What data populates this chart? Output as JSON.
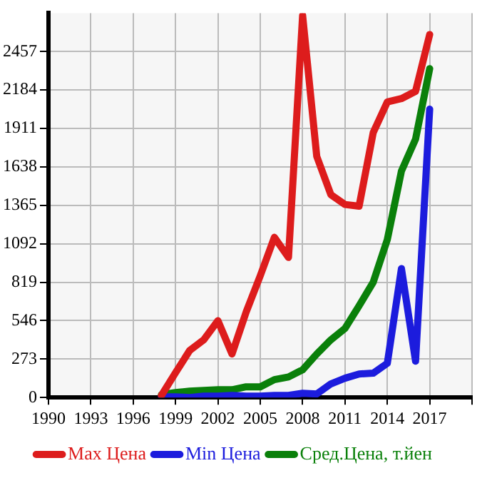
{
  "chart_data": {
    "type": "line",
    "x": [
      1998,
      1999,
      2000,
      2001,
      2002,
      2003,
      2004,
      2005,
      2006,
      2007,
      2008,
      2009,
      2010,
      2011,
      2012,
      2013,
      2014,
      2015,
      2016,
      2017
    ],
    "series": [
      {
        "name": "Max Цена",
        "color": "#dd1c1c",
        "values": [
          15,
          176,
          334,
          410,
          546,
          309,
          607,
          865,
          1138,
          995,
          2714,
          1713,
          1441,
          1371,
          1359,
          1881,
          2099,
          2123,
          2175,
          2578
        ]
      },
      {
        "name": "Min Цена",
        "color": "#1c1cdd",
        "values": [
          5,
          5,
          0,
          10,
          10,
          15,
          10,
          10,
          15,
          15,
          30,
          25,
          97,
          137,
          167,
          173,
          243,
          916,
          258,
          2048
        ]
      },
      {
        "name": "Сред.Цена, т.йен",
        "color": "#0a800a",
        "values": [
          20,
          35,
          45,
          50,
          55,
          55,
          76,
          76,
          127,
          146,
          197,
          309,
          410,
          491,
          652,
          819,
          1122,
          1608,
          1835,
          2336
        ]
      }
    ],
    "xlim": [
      1990,
      2020
    ],
    "xticks": [
      1990,
      1993,
      1996,
      1999,
      2002,
      2005,
      2008,
      2011,
      2014,
      2017,
      {
        "value": 2020,
        "label": null
      }
    ],
    "ylim": [
      0,
      2730
    ],
    "yticks": [
      0,
      273,
      546,
      819,
      1092,
      1365,
      1638,
      1911,
      2184,
      2457
    ],
    "grid": true,
    "legend": "bottom",
    "marker": "none",
    "line_style": "solid"
  }
}
